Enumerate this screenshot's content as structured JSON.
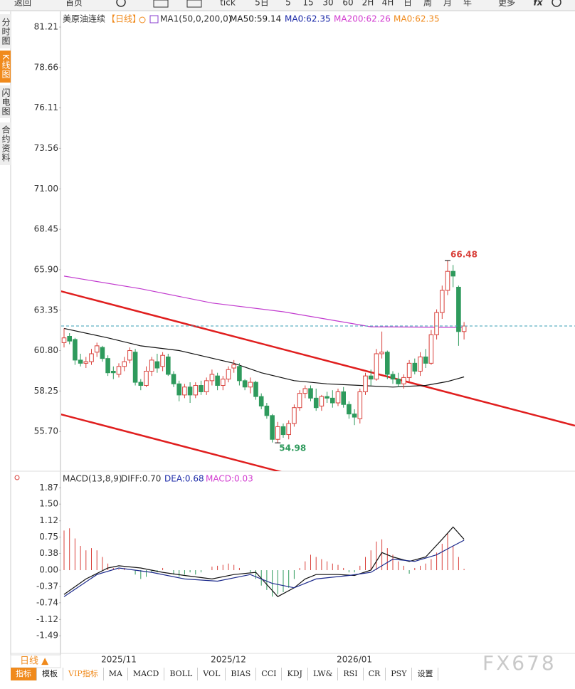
{
  "toolbar": [
    "返回",
    "首页",
    "tick",
    "5日",
    "5",
    "15",
    "30",
    "60",
    "2H",
    "4H",
    "日",
    "周",
    "月",
    "年",
    "更多",
    "fx"
  ],
  "side_tabs": [
    "分时图",
    "K线图",
    "闪电图",
    "合约资料"
  ],
  "legend": {
    "symbol": "美原油连续",
    "period": "【日线】",
    "ma_settings": "MA1(50,0,200,0)",
    "items": [
      "MA50:59.14",
      "MA0:62.35",
      "MA200:62.26",
      "MA0:62.35"
    ]
  },
  "macd_legend": [
    "MACD(13,8,9)",
    "DIFF:0.70",
    "DEA:0.68",
    "MACD:0.03"
  ],
  "chart_data": [
    {
      "type": "candlestick",
      "categories": [
        null,
        null,
        null,
        null,
        null,
        null,
        null,
        null,
        null,
        null,
        "2025/11",
        null,
        null,
        null,
        null,
        null,
        null,
        null,
        null,
        null,
        null,
        null,
        null,
        null,
        null,
        null,
        null,
        null,
        null,
        null,
        "2025/12",
        null,
        null,
        null,
        null,
        null,
        null,
        null,
        null,
        null,
        null,
        null,
        null,
        null,
        null,
        null,
        null,
        null,
        null,
        null,
        null,
        null,
        null,
        "2026/01",
        null,
        null,
        null,
        null,
        null,
        null,
        null,
        null,
        null,
        null,
        null,
        null,
        null,
        null,
        null,
        null,
        null,
        null,
        null,
        null
      ],
      "open": [
        61.3,
        61.7,
        61.5,
        60.2,
        60.0,
        60.1,
        60.7,
        61.0,
        60.3,
        59.5,
        59.3,
        59.8,
        60.2,
        60.7,
        58.8,
        58.6,
        59.5,
        60.1,
        59.8,
        60.4,
        59.3,
        58.7,
        58.0,
        58.5,
        58.0,
        58.6,
        58.2,
        58.9,
        59.2,
        58.6,
        59.0,
        59.7,
        59.8,
        58.9,
        58.5,
        58.8,
        57.9,
        57.3,
        56.7,
        55.2,
        56.0,
        55.5,
        56.2,
        57.2,
        58.1,
        58.4,
        57.8,
        57.3,
        57.9,
        57.8,
        57.5,
        58.2,
        57.4,
        56.8,
        56.5,
        58.2,
        59.2,
        59.0,
        60.6,
        60.7,
        59.3,
        59.0,
        58.7,
        59.1,
        60.0,
        59.5,
        60.4,
        60.0,
        61.8,
        63.2,
        64.6,
        65.8,
        64.8,
        62.0
      ],
      "high": [
        62.2,
        61.9,
        61.6,
        60.6,
        60.4,
        60.9,
        61.3,
        61.1,
        60.5,
        59.8,
        60.0,
        60.4,
        61.0,
        60.9,
        59.0,
        59.8,
        60.4,
        60.6,
        60.7,
        60.6,
        59.5,
        58.9,
        58.7,
        58.8,
        58.8,
        58.9,
        59.1,
        59.6,
        59.4,
        59.2,
        59.8,
        60.2,
        60.0,
        59.0,
        59.1,
        58.9,
        58.1,
        57.5,
        56.8,
        56.3,
        56.2,
        56.4,
        57.4,
        58.3,
        58.6,
        58.6,
        58.4,
        58.0,
        58.2,
        58.3,
        58.4,
        58.5,
        57.6,
        57.1,
        58.4,
        59.4,
        59.6,
        60.9,
        62.0,
        60.8,
        59.5,
        59.4,
        59.3,
        60.2,
        60.3,
        60.7,
        60.9,
        62.1,
        63.4,
        64.9,
        66.48,
        66.2,
        64.9,
        62.6
      ],
      "low": [
        61.0,
        61.2,
        59.9,
        59.8,
        59.7,
        59.9,
        60.4,
        60.1,
        59.2,
        59.0,
        59.1,
        59.5,
        60.0,
        58.6,
        58.3,
        58.5,
        59.2,
        59.4,
        59.5,
        59.2,
        58.5,
        57.6,
        57.8,
        57.5,
        57.8,
        58.0,
        58.0,
        58.6,
        58.3,
        58.3,
        58.8,
        59.4,
        58.6,
        58.3,
        58.1,
        57.7,
        57.1,
        56.5,
        55.0,
        54.98,
        55.3,
        55.2,
        56.0,
        57.0,
        57.8,
        57.6,
        57.0,
        57.0,
        57.5,
        57.2,
        57.3,
        57.2,
        56.5,
        56.1,
        56.2,
        58.0,
        58.6,
        58.9,
        60.3,
        59.0,
        58.7,
        58.5,
        58.4,
        58.8,
        59.3,
        59.2,
        59.7,
        59.9,
        61.5,
        62.8,
        64.3,
        64.8,
        61.1,
        61.5
      ],
      "close": [
        61.6,
        61.4,
        60.2,
        60.0,
        60.1,
        60.6,
        61.1,
        60.3,
        59.4,
        59.4,
        59.8,
        60.1,
        60.8,
        58.8,
        58.6,
        59.5,
        60.2,
        59.7,
        60.5,
        59.3,
        58.7,
        58.0,
        58.5,
        58.0,
        58.6,
        58.2,
        58.9,
        59.3,
        58.6,
        59.0,
        59.6,
        59.9,
        58.9,
        58.5,
        58.8,
        57.9,
        57.3,
        56.7,
        55.2,
        56.0,
        55.5,
        56.2,
        57.2,
        58.1,
        58.4,
        57.8,
        57.2,
        57.9,
        57.8,
        57.5,
        58.2,
        57.4,
        56.8,
        56.6,
        58.2,
        59.2,
        59.0,
        60.6,
        60.7,
        59.3,
        59.0,
        58.7,
        59.1,
        60.0,
        59.5,
        60.4,
        60.0,
        61.8,
        63.2,
        64.6,
        65.8,
        65.5,
        62.0,
        62.35
      ],
      "up_color": "#d9403a",
      "down_color": "#2e9a5c",
      "lines": [
        {
          "color": "#111111",
          "x": [
            0,
            8,
            14,
            21,
            26,
            31,
            36,
            42,
            48,
            54,
            60,
            66,
            70,
            73
          ],
          "values": [
            62.2,
            61.6,
            61.1,
            60.8,
            60.4,
            60.0,
            59.4,
            58.9,
            58.7,
            58.6,
            58.5,
            58.6,
            58.85,
            59.14
          ]
        },
        {
          "color": "#c23ccf",
          "x": [
            0,
            14,
            27,
            40,
            51,
            56,
            73
          ],
          "values": [
            65.5,
            64.7,
            63.8,
            63.25,
            62.6,
            62.3,
            62.26
          ]
        }
      ],
      "ylim": [
        53.19,
        82.11
      ],
      "yticks": [
        81.21,
        78.66,
        76.11,
        73.56,
        {
          "value": 71,
          "label": "71.00"
        },
        68.45,
        {
          "value": 65.9,
          "label": "65.90"
        },
        63.35,
        {
          "value": 60.8,
          "label": "60.80"
        },
        58.25,
        {
          "value": 55.7,
          "label": "55.70"
        }
      ]
    },
    {
      "type": "macd",
      "values": [
        0.9,
        0.95,
        0.72,
        0.55,
        0.45,
        0.5,
        0.45,
        0.3,
        0.15,
        0.05,
        0.02,
        0.05,
        0,
        -0.1,
        -0.2,
        -0.15,
        -0.05,
        -0.05,
        0.05,
        0,
        -0.1,
        -0.15,
        -0.1,
        -0.05,
        -0.1,
        -0.05,
        0,
        0.08,
        0.1,
        0.12,
        0.15,
        0.12,
        0.05,
        0,
        -0.05,
        -0.2,
        -0.35,
        -0.45,
        -0.6,
        -0.55,
        -0.5,
        -0.4,
        -0.2,
        0.05,
        0.2,
        0.35,
        0.3,
        0.25,
        0.2,
        0.15,
        0.12,
        0.05,
        -0.05,
        -0.05,
        0.1,
        0.3,
        0.45,
        0.65,
        0.7,
        0.5,
        0.35,
        0.2,
        0.1,
        -0.08,
        0.05,
        0.1,
        0.15,
        0.25,
        0.4,
        0.6,
        0.85,
        0.55,
        0.3,
        0.03
      ],
      "up_color": "#d9403a",
      "down_color": "#2e9a5c",
      "lines": [
        {
          "color": "#111111",
          "x": [
            0,
            4,
            8,
            10,
            14,
            18,
            22,
            27,
            31,
            35,
            39,
            42,
            44,
            46,
            50,
            53,
            56,
            58,
            60,
            63,
            66,
            69,
            71,
            73
          ],
          "values": [
            -0.55,
            -0.2,
            0.05,
            0.1,
            0.05,
            -0.05,
            -0.12,
            -0.2,
            -0.1,
            -0.05,
            -0.6,
            -0.4,
            -0.2,
            -0.1,
            -0.1,
            -0.12,
            0,
            0.4,
            0.3,
            0.2,
            0.3,
            0.7,
            0.98,
            0.7
          ]
        },
        {
          "color": "#1c2a8c",
          "x": [
            0,
            6,
            10,
            16,
            22,
            28,
            34,
            38,
            42,
            46,
            52,
            56,
            60,
            64,
            68,
            71,
            73
          ],
          "values": [
            -0.6,
            -0.1,
            0.05,
            -0.05,
            -0.2,
            -0.25,
            -0.1,
            -0.3,
            -0.4,
            -0.2,
            -0.12,
            -0.05,
            0.25,
            0.2,
            0.35,
            0.55,
            0.68
          ]
        }
      ],
      "ylim": [
        -1.89,
        2.15
      ],
      "yticks": [
        1.87,
        {
          "value": 1.5,
          "label": "1.50"
        },
        1.12,
        0.75,
        0.38,
        {
          "value": 0,
          "label": "0.00"
        },
        -0.37,
        -0.74,
        -1.12,
        -1.49
      ]
    }
  ],
  "bottom_tab": "日线 ▲",
  "indicator_bar": [
    "指标",
    "模板",
    "VIP指标",
    "MA",
    "MACD",
    "BOLL",
    "VOL",
    "BIAS",
    "CCI",
    "KDJ",
    "LW&",
    "RSI",
    "CR",
    "PSY",
    "设置"
  ],
  "watermark": "FX678"
}
